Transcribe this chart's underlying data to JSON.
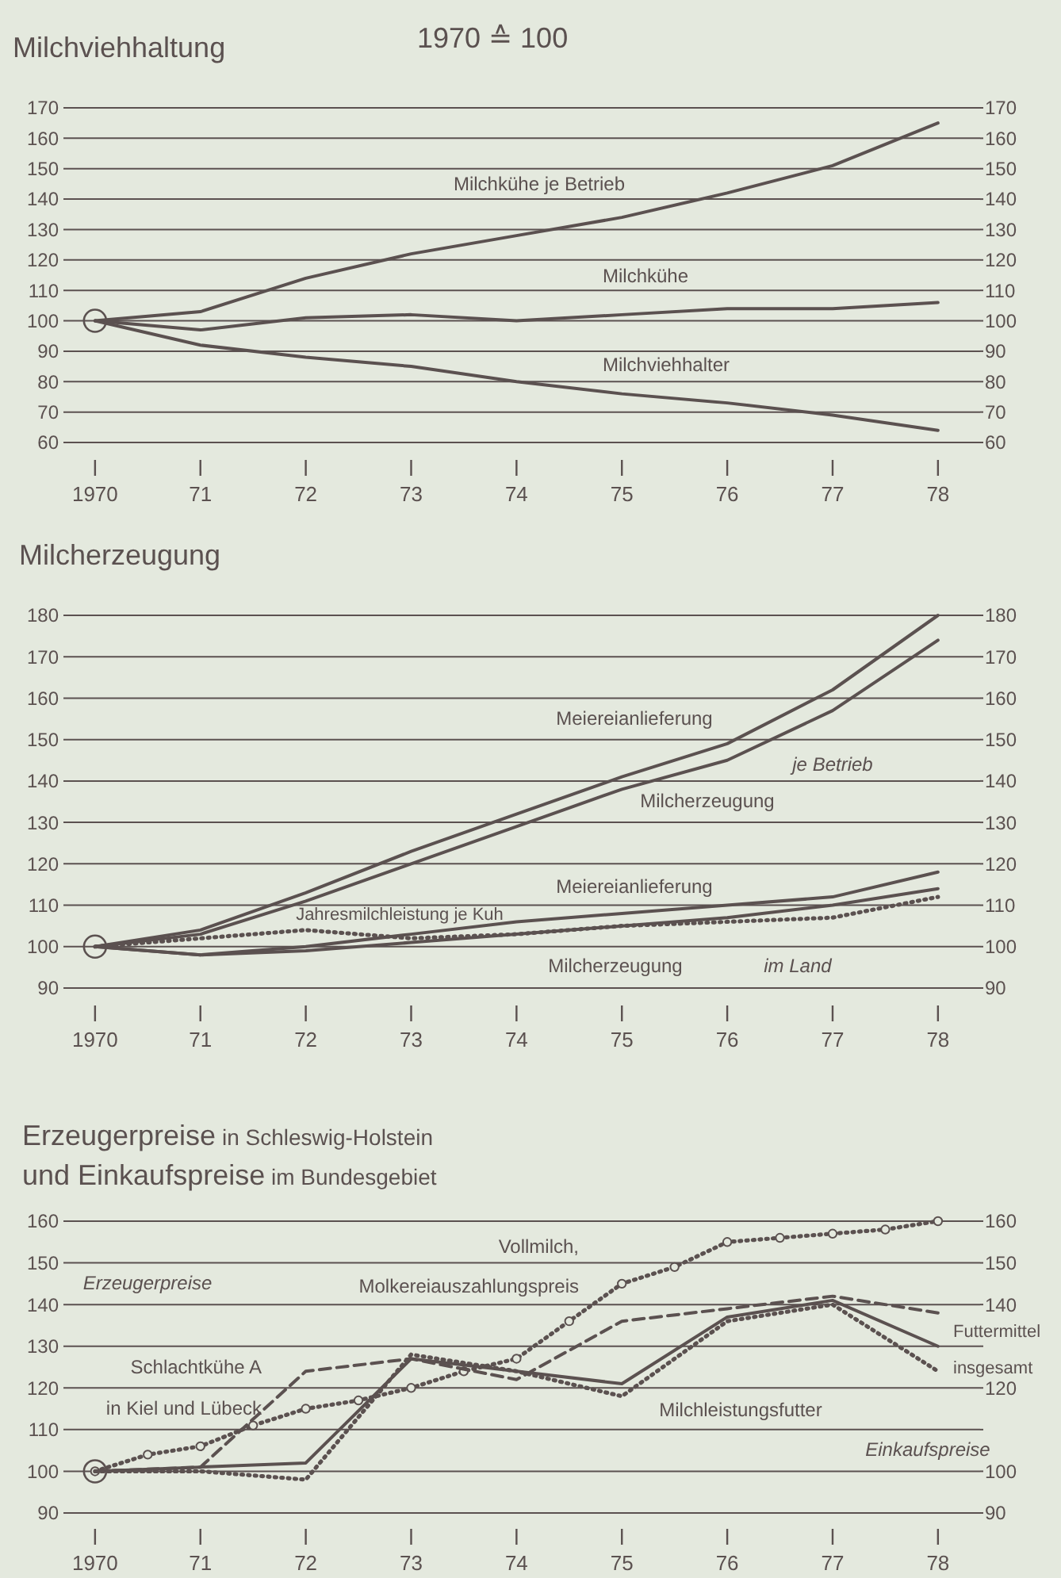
{
  "chart_data": [
    {
      "type": "line",
      "title": "Milchviehhaltung",
      "subtitle": "1970 ≙ 100",
      "x": [
        1970,
        1971,
        1972,
        1973,
        1974,
        1975,
        1976,
        1977,
        1978
      ],
      "xlim": [
        1969.7,
        1978.4
      ],
      "xticks": [
        {
          "value": 1970,
          "label": "1970"
        },
        {
          "value": 1971,
          "label": "71"
        },
        {
          "value": 1972,
          "label": "72"
        },
        {
          "value": 1973,
          "label": "73"
        },
        {
          "value": 1974,
          "label": "74"
        },
        {
          "value": 1975,
          "label": "75"
        },
        {
          "value": 1976,
          "label": "76"
        },
        {
          "value": 1977,
          "label": "77"
        },
        {
          "value": 1978,
          "label": "78"
        }
      ],
      "ylim": [
        60,
        170
      ],
      "yticks": [
        60,
        70,
        80,
        90,
        100,
        110,
        120,
        130,
        140,
        150,
        160,
        170
      ],
      "y2lim": [
        60,
        170
      ],
      "y2ticks": [
        60,
        70,
        80,
        90,
        100,
        110,
        120,
        130,
        140,
        150,
        160,
        170
      ],
      "grid": "y",
      "line_style": "solid",
      "series": [
        {
          "name": "Milchkühe je Betrieb",
          "color": "#5b5150",
          "values": [
            100,
            103,
            114,
            122,
            128,
            134,
            142,
            151,
            165
          ]
        },
        {
          "name": "Milchkühe",
          "color": "#5b5150",
          "values": [
            100,
            97,
            101,
            102,
            100,
            102,
            104,
            104,
            106
          ]
        },
        {
          "name": "Milchviehhalter",
          "color": "#5b5150",
          "values": [
            100,
            92,
            88,
            85,
            80,
            76,
            73,
            69,
            64
          ]
        }
      ]
    },
    {
      "type": "line",
      "title": "Milcherzeugung",
      "x": [
        1970,
        1971,
        1972,
        1973,
        1974,
        1975,
        1976,
        1977,
        1978
      ],
      "xlim": [
        1969.7,
        1978.4
      ],
      "xticks": [
        {
          "value": 1970,
          "label": "1970"
        },
        {
          "value": 1971,
          "label": "71"
        },
        {
          "value": 1972,
          "label": "72"
        },
        {
          "value": 1973,
          "label": "73"
        },
        {
          "value": 1974,
          "label": "74"
        },
        {
          "value": 1975,
          "label": "75"
        },
        {
          "value": 1976,
          "label": "76"
        },
        {
          "value": 1977,
          "label": "77"
        },
        {
          "value": 1978,
          "label": "78"
        }
      ],
      "ylim": [
        90,
        180
      ],
      "yticks": [
        90,
        100,
        110,
        120,
        130,
        140,
        150,
        160,
        170,
        180
      ],
      "y2lim": [
        90,
        180
      ],
      "y2ticks": [
        90,
        100,
        110,
        120,
        130,
        140,
        150,
        160,
        170,
        180
      ],
      "grid": "y",
      "line_style": "solid",
      "annotations": [
        "je Betrieb",
        "im Land"
      ],
      "series": [
        {
          "name": "Meiereianlieferung",
          "color": "#5b5150",
          "values": [
            100,
            104,
            113,
            123,
            132,
            141,
            149,
            162,
            180
          ]
        },
        {
          "name": "Milcherzeugung",
          "color": "#5b5150",
          "values": [
            100,
            103,
            111,
            120,
            129,
            138,
            145,
            157,
            174
          ]
        },
        {
          "name": "Meiereianlieferung",
          "color": "#5b5150",
          "values": [
            100,
            98,
            100,
            103,
            106,
            108,
            110,
            112,
            118
          ]
        },
        {
          "name": "Milcherzeugung",
          "color": "#5b5150",
          "values": [
            100,
            98,
            99,
            101,
            103,
            105,
            107,
            110,
            114
          ]
        },
        {
          "name": "Jahresmilchleistung je Kuh",
          "color": "#5b5150",
          "line_style": "dotted",
          "values": [
            100,
            102,
            104,
            102,
            103,
            105,
            106,
            107,
            112
          ]
        }
      ]
    },
    {
      "type": "line",
      "title": "Erzeugerpreise in Schleswig-Holstein",
      "subtitle": "und Einkaufspreise im Bundesgebiet",
      "x": [
        1970,
        1971,
        1972,
        1973,
        1974,
        1975,
        1976,
        1977,
        1978
      ],
      "xlim": [
        1969.7,
        1978.4
      ],
      "xticks": [
        {
          "value": 1970,
          "label": "1970"
        },
        {
          "value": 1971,
          "label": "71"
        },
        {
          "value": 1972,
          "label": "72"
        },
        {
          "value": 1973,
          "label": "73"
        },
        {
          "value": 1974,
          "label": "74"
        },
        {
          "value": 1975,
          "label": "75"
        },
        {
          "value": 1976,
          "label": "76"
        },
        {
          "value": 1977,
          "label": "77"
        },
        {
          "value": 1978,
          "label": "78"
        }
      ],
      "ylim": [
        90,
        160
      ],
      "yticks": [
        90,
        100,
        110,
        120,
        130,
        140,
        150,
        160
      ],
      "y2lim": [
        90,
        160
      ],
      "y2ticks": [
        90,
        100,
        {
          "value": 110,
          "label": null
        },
        120,
        {
          "value": 130,
          "label": null
        },
        140,
        150,
        160
      ],
      "grid": "y",
      "line_style": "solid",
      "annotations": [
        "Erzeugerpreise",
        "Einkaufspreise"
      ],
      "series": [
        {
          "name": "Vollmilch,\nMolkereiauszahlungspreis",
          "color": "#5b5150",
          "line_style": "dotted",
          "marker": "circle",
          "x": [
            1970,
            1970.5,
            1971,
            1971.5,
            1972,
            1972.5,
            1973,
            1973.5,
            1974,
            1974.5,
            1975,
            1975.5,
            1976,
            1976.5,
            1977,
            1977.5,
            1978
          ],
          "values": [
            100,
            104,
            106,
            111,
            115,
            117,
            120,
            124,
            127,
            136,
            145,
            149,
            155,
            156,
            157,
            158,
            160
          ]
        },
        {
          "name": "Schlachtkühe A\nin Kiel und Lübeck",
          "color": "#5b5150",
          "line_style": "dashed",
          "values": [
            100,
            101,
            124,
            127,
            122,
            136,
            139,
            142,
            138
          ]
        },
        {
          "name": "Futtermittel\ninsgesamt",
          "color": "#5b5150",
          "values": [
            100,
            101,
            102,
            127,
            124,
            121,
            137,
            141,
            130
          ]
        },
        {
          "name": "Milchleistungsfutter",
          "color": "#5b5150",
          "line_style": "dotted",
          "values": [
            100,
            100,
            98,
            128,
            124,
            118,
            136,
            140,
            124
          ]
        }
      ]
    }
  ]
}
